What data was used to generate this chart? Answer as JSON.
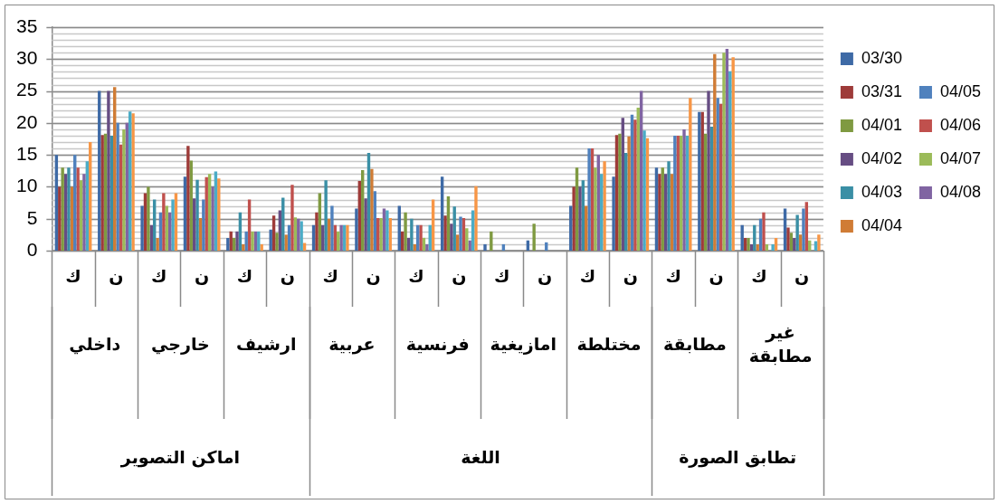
{
  "chart_data": {
    "type": "bar",
    "categories": [
      "ك",
      "ن",
      "ك",
      "ن",
      "ك",
      "ن",
      "ك",
      "ن",
      "ك",
      "ن",
      "ك",
      "ن",
      "ك",
      "ن",
      "ك",
      "ن",
      "ك",
      "ن"
    ],
    "annotations": [
      "داخلي",
      "خارجي",
      "ارشيف",
      "عربية",
      "فرنسية",
      "امازيغية",
      "مختلطة",
      "مطابقة",
      "غير مطابقة",
      "اماكن التصوير",
      "اللغة",
      "تطابق الصورة"
    ],
    "series": [
      {
        "name": "03/30",
        "color": "#3e6aa6",
        "values": [
          15,
          25,
          7,
          11.6,
          2,
          3.3,
          4,
          6.6,
          7,
          11.6,
          1,
          1.6,
          7,
          11.6,
          13,
          21.7,
          4,
          6.6
        ]
      },
      {
        "name": "03/31",
        "color": "#9e3b39",
        "values": [
          10,
          18.1,
          9,
          16.4,
          3,
          5.5,
          6,
          10.9,
          3,
          5.5,
          0,
          0,
          10,
          18.1,
          12,
          21.7,
          2,
          3.6
        ]
      },
      {
        "name": "04/01",
        "color": "#7f9a41",
        "values": [
          13,
          18.3,
          10,
          14.1,
          2,
          2.8,
          9,
          12.6,
          6,
          8.5,
          3,
          4.2,
          13,
          18.3,
          13,
          18.3,
          2,
          2.8
        ]
      },
      {
        "name": "04/02",
        "color": "#664d83",
        "values": [
          12,
          25,
          4,
          8.2,
          3,
          6.3,
          4,
          8.2,
          2,
          4.2,
          0,
          0,
          10,
          20.8,
          12,
          25,
          1,
          2
        ]
      },
      {
        "name": "04/03",
        "color": "#3a8fa5",
        "values": [
          13,
          18,
          8,
          11.1,
          6,
          8.3,
          11,
          15.3,
          5,
          6.9,
          0,
          0,
          11,
          15.3,
          14,
          19.4,
          4,
          5.6
        ]
      },
      {
        "name": "04/04",
        "color": "#d07c35",
        "values": [
          10,
          25.6,
          2,
          5.1,
          1,
          2.5,
          5,
          12.8,
          1,
          2.5,
          0,
          0,
          7,
          17.9,
          12,
          30.8,
          1,
          2.5
        ]
      },
      {
        "name": "04/05",
        "color": "#4f81bd",
        "values": [
          15,
          20,
          6,
          8,
          3,
          4,
          7,
          9.3,
          4,
          5.3,
          1,
          1.3,
          16,
          21.3,
          18,
          23.9,
          5,
          6.6
        ]
      },
      {
        "name": "04/06",
        "color": "#c0504d",
        "values": [
          13,
          16.6,
          9,
          11.5,
          8,
          10.3,
          4,
          5.1,
          4,
          5.1,
          0,
          0,
          16,
          20.5,
          18,
          23,
          6,
          7.6
        ]
      },
      {
        "name": "04/07",
        "color": "#9bbb59",
        "values": [
          11,
          19,
          7,
          12,
          3,
          5.2,
          3,
          5.1,
          2,
          3.5,
          0,
          0,
          13,
          22.4,
          18,
          31,
          1,
          1.6
        ]
      },
      {
        "name": "04/08",
        "color": "#8064a2",
        "values": [
          12,
          20,
          6,
          10,
          3,
          5,
          4,
          6.6,
          1,
          1.6,
          0,
          0,
          15,
          25,
          19,
          31.6,
          0,
          0
        ]
      },
      {
        "color": "#4bacc6",
        "values": [
          14,
          21.8,
          8,
          12.4,
          3,
          4.6,
          4,
          6.3,
          4,
          6.3,
          0,
          0,
          12,
          18.8,
          18,
          28.1,
          1,
          1.5
        ]
      },
      {
        "color": "#f79646",
        "values": [
          17,
          21.5,
          9,
          11.3,
          1,
          1.2,
          4,
          5.1,
          8,
          10.1,
          0,
          0,
          14,
          17.6,
          23.9,
          30.3,
          2,
          2.5
        ]
      }
    ],
    "ylim": [
      0,
      35
    ],
    "yticks": [
      0,
      5,
      10,
      15,
      20,
      25,
      30,
      35
    ],
    "grid": "y",
    "legend": "right"
  }
}
